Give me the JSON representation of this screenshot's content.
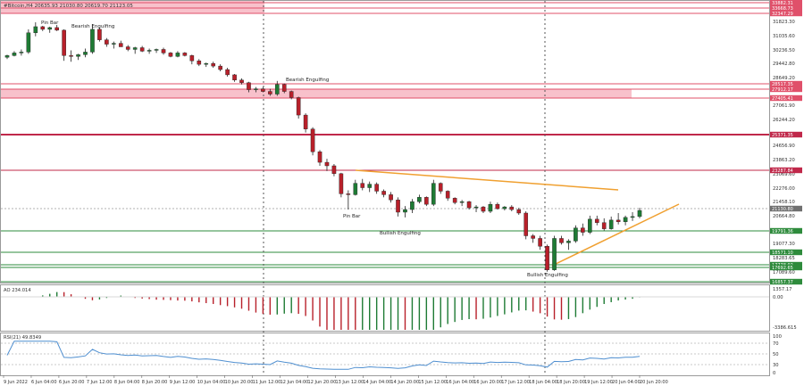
{
  "header": {
    "symbol_line": "#Bitcoin,H4  20635.93 21030.80 20619.70 21123.05"
  },
  "price_axis": {
    "ticks": [
      "31823.30",
      "31035.60",
      "30236.50",
      "29442.80",
      "28649.20",
      "27061.90",
      "26244.20",
      "24656.90",
      "23863.20",
      "23069.60",
      "22276.00",
      "21458.10",
      "20664.80",
      "19077.30",
      "18283.65",
      "17089.60"
    ],
    "level_labels": [
      {
        "text": "33882.31",
        "color": "#e0506a"
      },
      {
        "text": "33668.73",
        "color": "#e0506a"
      },
      {
        "text": "32347.29",
        "color": "#e0506a"
      },
      {
        "text": "28517.35",
        "color": "#e0506a"
      },
      {
        "text": "27912.17",
        "color": "#e0506a"
      },
      {
        "text": "27405.41",
        "color": "#e0506a"
      },
      {
        "text": "25371.35",
        "color": "#c0284a"
      },
      {
        "text": "23287.84",
        "color": "#c0284a"
      },
      {
        "text": "21130.80",
        "color": "#707070"
      },
      {
        "text": "19791.36",
        "color": "#2e8b3c"
      },
      {
        "text": "18571.10",
        "color": "#2e8b3c"
      },
      {
        "text": "17778.02",
        "color": "#2e8b3c"
      },
      {
        "text": "17692.65",
        "color": "#2e8b3c"
      },
      {
        "text": "16857.37",
        "color": "#2e8b3c"
      }
    ]
  },
  "annotations": {
    "pin_bar_top": "Pin Bar",
    "bearish_engulfing_1": "Bearish Engulfing",
    "bearish_engulfing_2": "Bearish Engulfing",
    "pin_bar_bottom": "Pin Bar",
    "bullish_engulfing_1": "Bullish Engulfing",
    "bullish_engulfing_2": "Bullish Engulfing"
  },
  "ao_panel": {
    "label": "AO 234.014",
    "ticks": [
      "1357.17",
      "0.00",
      "-3386.615"
    ]
  },
  "rsi_panel": {
    "label": "RSI(21) 49.8349",
    "ticks": [
      "100",
      "70",
      "50",
      "30",
      "0"
    ]
  },
  "time_axis": {
    "labels": [
      "9 Jun 2022",
      "6 Jun 04:00",
      "6 Jun 20:00",
      "7 Jun 12:00",
      "8 Jun 04:00",
      "8 Jun 20:00",
      "9 Jun 12:00",
      "10 Jun 04:00",
      "10 Jun 20:00",
      "11 Jun 12:00",
      "12 Jun 04:00",
      "12 Jun 20:00",
      "13 Jun 12:00",
      "14 Jun 04:00",
      "14 Jun 20:00",
      "15 Jun 12:00",
      "16 Jun 04:00",
      "16 Jun 20:00",
      "17 Jun 12:00",
      "18 Jun 04:00",
      "18 Jun 20:00",
      "19 Jun 12:00",
      "20 Jun 04:00",
      "20 Jun 20:00"
    ]
  },
  "colors": {
    "bull": "#1e7b34",
    "bear": "#b8202a",
    "resistance_zone": "#f7b6c2",
    "resistance_line": "#c0284a",
    "support_line": "#2e8b3c",
    "trendline": "#f0a030",
    "rsi_line": "#4f8fd0"
  },
  "candles": [
    [
      29900,
      30050,
      29800,
      30000
    ],
    [
      30000,
      30250,
      29950,
      30150
    ],
    [
      30150,
      30350,
      30000,
      30200
    ],
    [
      30200,
      31500,
      30100,
      31300
    ],
    [
      31300,
      31900,
      31100,
      31650
    ],
    [
      31650,
      31700,
      31400,
      31500
    ],
    [
      31500,
      31650,
      31300,
      31600
    ],
    [
      31600,
      31750,
      31400,
      31450
    ],
    [
      31450,
      31500,
      29700,
      30000
    ],
    [
      30000,
      30300,
      29650,
      29950
    ],
    [
      29950,
      30100,
      29750,
      30050
    ],
    [
      30050,
      30400,
      29900,
      30200
    ],
    [
      30200,
      31800,
      30100,
      31500
    ],
    [
      31500,
      31600,
      30800,
      30900
    ],
    [
      30900,
      31000,
      30500,
      30650
    ],
    [
      30650,
      30800,
      30400,
      30700
    ],
    [
      30700,
      30850,
      30500,
      30500
    ],
    [
      30500,
      30600,
      30250,
      30350
    ],
    [
      30350,
      30500,
      30100,
      30450
    ],
    [
      30450,
      30550,
      30200,
      30250
    ],
    [
      30250,
      30400,
      30100,
      30300
    ],
    [
      30300,
      30400,
      30150,
      30350
    ],
    [
      30350,
      30450,
      30050,
      30150
    ],
    [
      30150,
      30200,
      29900,
      29950
    ],
    [
      29950,
      30250,
      29900,
      30150
    ],
    [
      30150,
      30200,
      29950,
      30000
    ],
    [
      30000,
      30050,
      29500,
      29700
    ],
    [
      29700,
      29800,
      29400,
      29500
    ],
    [
      29500,
      29600,
      29350,
      29550
    ],
    [
      29550,
      29650,
      29300,
      29400
    ],
    [
      29400,
      29500,
      29100,
      29200
    ],
    [
      29200,
      29300,
      28800,
      28900
    ],
    [
      28900,
      28950,
      28500,
      28600
    ],
    [
      28600,
      28700,
      28350,
      28450
    ],
    [
      28450,
      28500,
      27900,
      28050
    ],
    [
      28050,
      28200,
      27900,
      28100
    ],
    [
      28100,
      28200,
      27900,
      27950
    ],
    [
      27950,
      28100,
      27700,
      27800
    ],
    [
      27800,
      28550,
      27700,
      28350
    ],
    [
      28350,
      28400,
      27850,
      27950
    ],
    [
      27950,
      28000,
      27500,
      27600
    ],
    [
      27600,
      27650,
      26400,
      26600
    ],
    [
      26600,
      26700,
      25600,
      25800
    ],
    [
      25800,
      25900,
      24300,
      24500
    ],
    [
      24500,
      24600,
      23700,
      23900
    ],
    [
      23900,
      24100,
      23400,
      23700
    ],
    [
      23700,
      23800,
      23100,
      23250
    ],
    [
      23250,
      23300,
      21900,
      22100
    ],
    [
      22100,
      22300,
      21200,
      22050
    ],
    [
      22050,
      22900,
      22000,
      22700
    ],
    [
      22700,
      22950,
      22300,
      22450
    ],
    [
      22450,
      22800,
      22200,
      22650
    ],
    [
      22650,
      22750,
      22100,
      22250
    ],
    [
      22250,
      22350,
      21900,
      22050
    ],
    [
      22050,
      22200,
      21600,
      21750
    ],
    [
      21750,
      21900,
      20800,
      21050
    ],
    [
      21050,
      21400,
      20750,
      21200
    ],
    [
      21200,
      21800,
      21000,
      21650
    ],
    [
      21650,
      22050,
      21550,
      21900
    ],
    [
      21900,
      21950,
      21400,
      21500
    ],
    [
      21500,
      22900,
      21400,
      22700
    ],
    [
      22700,
      22750,
      22100,
      22250
    ],
    [
      22250,
      22300,
      21700,
      21850
    ],
    [
      21850,
      21900,
      21500,
      21600
    ],
    [
      21600,
      21750,
      21400,
      21650
    ],
    [
      21650,
      21700,
      21200,
      21300
    ],
    [
      21300,
      21450,
      21050,
      21350
    ],
    [
      21350,
      21400,
      21000,
      21100
    ],
    [
      21100,
      21650,
      21000,
      21500
    ],
    [
      21500,
      21600,
      21200,
      21250
    ],
    [
      21250,
      21400,
      21150,
      21350
    ],
    [
      21350,
      21450,
      21100,
      21200
    ],
    [
      21200,
      21300,
      20900,
      21000
    ],
    [
      21000,
      21100,
      19500,
      19700
    ],
    [
      19700,
      19800,
      19300,
      19550
    ],
    [
      19550,
      19700,
      18900,
      19100
    ],
    [
      19100,
      19200,
      17650,
      17750
    ],
    [
      17750,
      19700,
      17700,
      19550
    ],
    [
      19550,
      19700,
      19200,
      19300
    ],
    [
      19300,
      19500,
      18900,
      19400
    ],
    [
      19400,
      20300,
      19300,
      20150
    ],
    [
      20150,
      20400,
      19700,
      19900
    ],
    [
      19900,
      20850,
      19800,
      20650
    ],
    [
      20650,
      20850,
      20300,
      20450
    ],
    [
      20450,
      20700,
      20000,
      20100
    ],
    [
      20100,
      20800,
      20050,
      20600
    ],
    [
      20600,
      21000,
      20350,
      20500
    ],
    [
      20500,
      20850,
      20300,
      20750
    ],
    [
      20750,
      21050,
      20550,
      20800
    ],
    [
      20800,
      21300,
      20700,
      21150
    ]
  ]
}
